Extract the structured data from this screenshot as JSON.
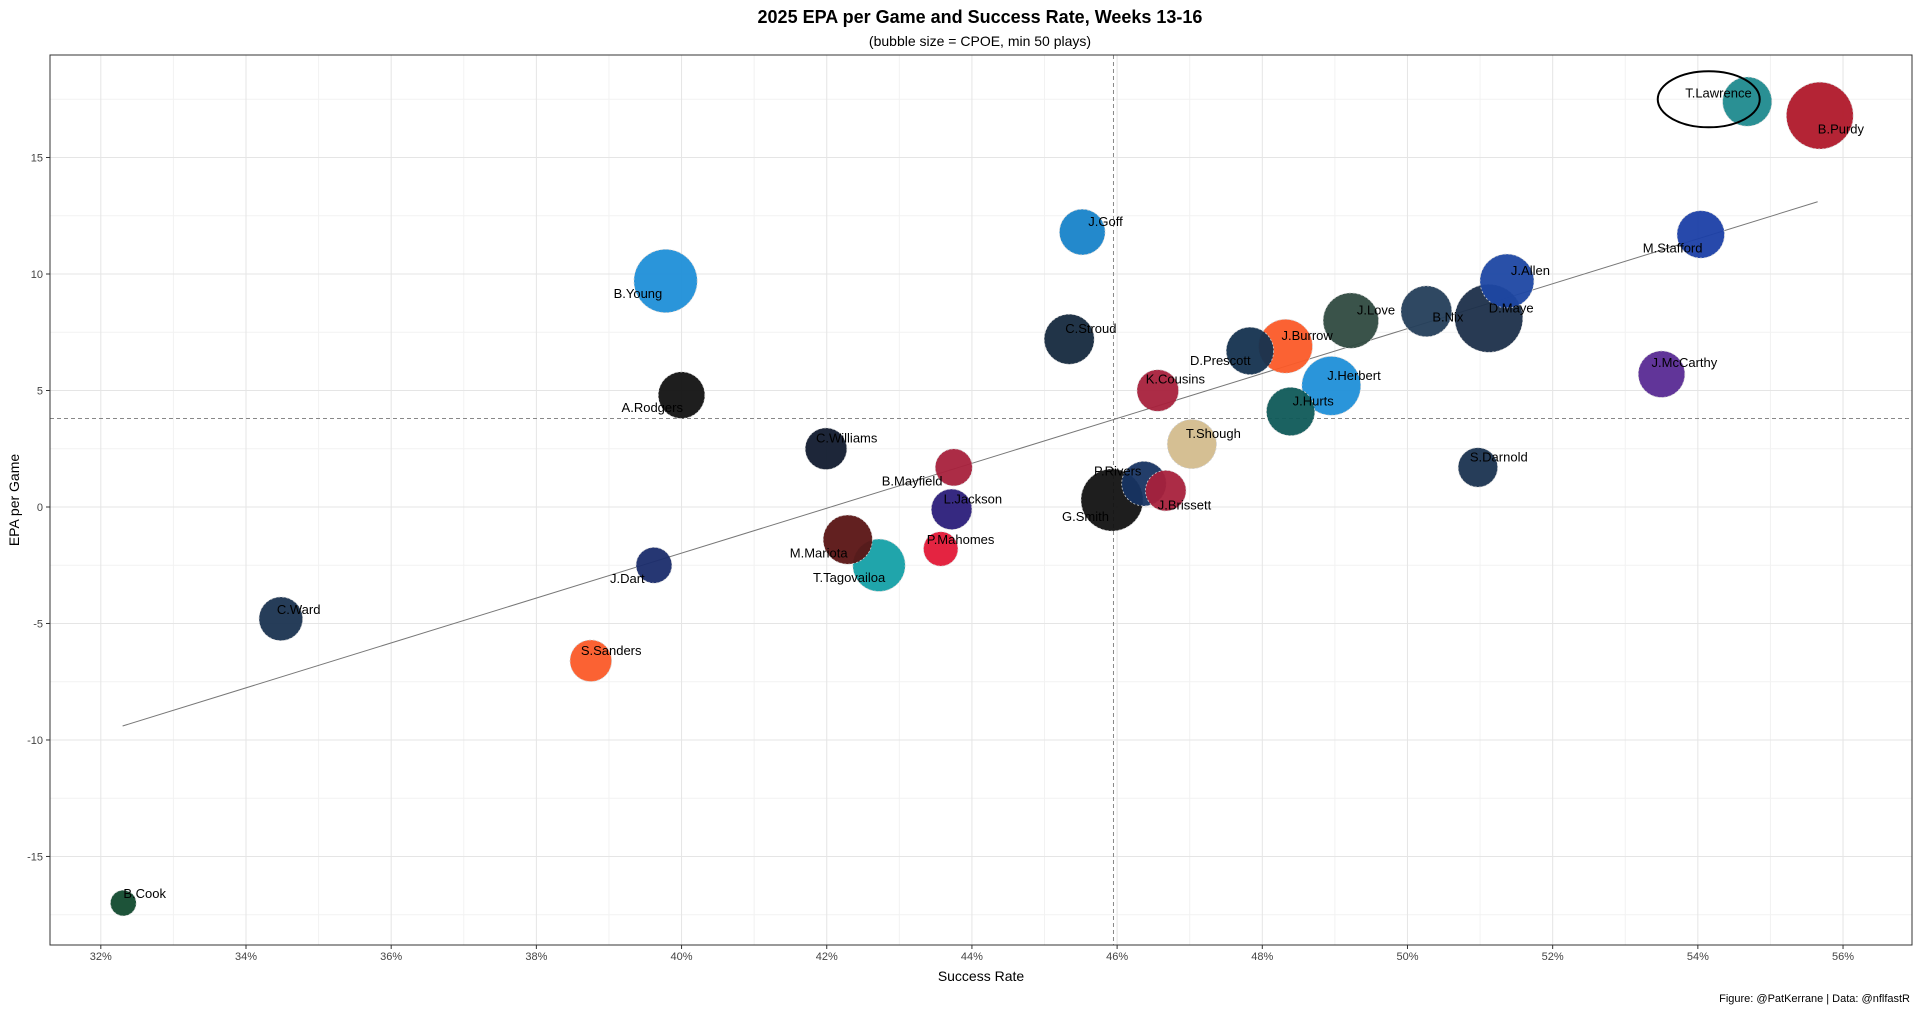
{
  "chart_data": {
    "type": "scatter",
    "title": "2025 EPA per Game and Success Rate, Weeks 13-16",
    "subtitle": "(bubble size = CPOE, min 50 plays)",
    "xlabel": "Success Rate",
    "ylabel": "EPA per Game",
    "caption": "Figure: @PatKerrane | Data: @nflfastR",
    "xlim": [
      0.313,
      0.5695
    ],
    "ylim": [
      -18.8,
      19.4
    ],
    "x_ticks": [
      0.32,
      0.34,
      0.36,
      0.38,
      0.4,
      0.42,
      0.44,
      0.46,
      0.48,
      0.5,
      0.52,
      0.54,
      0.56
    ],
    "x_tick_labels": [
      "32%",
      "34%",
      "36%",
      "38%",
      "40%",
      "42%",
      "44%",
      "46%",
      "48%",
      "50%",
      "52%",
      "54%",
      "56%"
    ],
    "y_ticks": [
      -15,
      -10,
      -5,
      0,
      5,
      10,
      15
    ],
    "y_tick_labels": [
      "-15",
      "-10",
      "-5",
      "0",
      "5",
      "10",
      "15"
    ],
    "grid": true,
    "mean_x": 0.4595,
    "mean_y": 3.8,
    "trend_line": {
      "x": [
        0.323,
        0.5565
      ],
      "y": [
        -9.4,
        13.1
      ]
    },
    "highlight": {
      "label": "T.Lawrence",
      "x": 0.5415,
      "y": 17.5
    },
    "points": [
      {
        "label": "T.Lawrence",
        "x": 0.5468,
        "y": 17.4,
        "size": 2.2,
        "color": "#1f8a8e"
      },
      {
        "label": "B.Purdy",
        "x": 0.5568,
        "y": 16.8,
        "size": 4.8,
        "color": "#b0182a"
      },
      {
        "label": "M.Stafford",
        "x": 0.5404,
        "y": 11.7,
        "size": 2.0,
        "color": "#1b3fa6"
      },
      {
        "label": "J.Allen",
        "x": 0.5137,
        "y": 9.7,
        "size": 2.8,
        "color": "#1e47a3"
      },
      {
        "label": "D.Maye",
        "x": 0.5112,
        "y": 8.1,
        "size": 5.0,
        "color": "#1c2f4a"
      },
      {
        "label": "B.Nix",
        "x": 0.5026,
        "y": 8.4,
        "size": 2.4,
        "color": "#243e5a"
      },
      {
        "label": "J.Love",
        "x": 0.4922,
        "y": 8.0,
        "size": 3.0,
        "color": "#2f4a40"
      },
      {
        "label": "J.Burrow",
        "x": 0.4832,
        "y": 6.9,
        "size": 2.8,
        "color": "#fb5a28"
      },
      {
        "label": "D.Prescott",
        "x": 0.4783,
        "y": 6.7,
        "size": 2.0,
        "color": "#14324f"
      },
      {
        "label": "J.Herbert",
        "x": 0.4895,
        "y": 5.2,
        "size": 3.5,
        "color": "#1f8fd8"
      },
      {
        "label": "J.Hurts",
        "x": 0.4839,
        "y": 4.1,
        "size": 2.1,
        "color": "#0f5a59"
      },
      {
        "label": "J.McCarthy",
        "x": 0.535,
        "y": 5.7,
        "size": 1.9,
        "color": "#582a94"
      },
      {
        "label": "S.Darnold",
        "x": 0.5097,
        "y": 1.7,
        "size": 1.2,
        "color": "#1a3350"
      },
      {
        "label": "J.Goff",
        "x": 0.4552,
        "y": 11.8,
        "size": 1.8,
        "color": "#1783c9"
      },
      {
        "label": "C.Stroud",
        "x": 0.4534,
        "y": 7.2,
        "size": 2.3,
        "color": "#15293e"
      },
      {
        "label": "K.Cousins",
        "x": 0.4656,
        "y": 5.0,
        "size": 1.4,
        "color": "#a8213c"
      },
      {
        "label": "T.Shough",
        "x": 0.4703,
        "y": 2.7,
        "size": 2.2,
        "color": "#d3bc8d"
      },
      {
        "label": "P.Rivers",
        "x": 0.4637,
        "y": 1.0,
        "size": 1.7,
        "color": "#173462"
      },
      {
        "label": "J.Brissett",
        "x": 0.4667,
        "y": 0.7,
        "size": 1.3,
        "color": "#a8213c"
      },
      {
        "label": "G.Smith",
        "x": 0.4593,
        "y": 0.3,
        "size": 4.0,
        "color": "#121212"
      },
      {
        "label": "B.Young",
        "x": 0.3978,
        "y": 9.7,
        "size": 4.2,
        "color": "#1f8fd8"
      },
      {
        "label": "A.Rodgers",
        "x": 0.4,
        "y": 4.8,
        "size": 1.9,
        "color": "#121212"
      },
      {
        "label": "C.Williams",
        "x": 0.4199,
        "y": 2.5,
        "size": 1.4,
        "color": "#111a2e"
      },
      {
        "label": "B.Mayfield",
        "x": 0.4375,
        "y": 1.7,
        "size": 1.0,
        "color": "#a8213c"
      },
      {
        "label": "L.Jackson",
        "x": 0.4372,
        "y": -0.1,
        "size": 1.3,
        "color": "#2b1e7a"
      },
      {
        "label": "M.Mariota",
        "x": 0.4229,
        "y": -1.4,
        "size": 2.2,
        "color": "#5a1414"
      },
      {
        "label": "P.Mahomes",
        "x": 0.4357,
        "y": -1.8,
        "size": 0.8,
        "color": "#e31837"
      },
      {
        "label": "T.Tagovailoa",
        "x": 0.4272,
        "y": -2.5,
        "size": 2.6,
        "color": "#14a0a6"
      },
      {
        "label": "J.Dart",
        "x": 0.3962,
        "y": -2.5,
        "size": 0.9,
        "color": "#1a2c6b"
      },
      {
        "label": "C.Ward",
        "x": 0.3448,
        "y": -4.8,
        "size": 1.6,
        "color": "#1a3350"
      },
      {
        "label": "S.Sanders",
        "x": 0.3875,
        "y": -6.6,
        "size": 1.4,
        "color": "#fb5a28"
      },
      {
        "label": "B.Cook",
        "x": 0.3231,
        "y": -17.0,
        "size": 0.3,
        "color": "#114a2e"
      }
    ]
  }
}
